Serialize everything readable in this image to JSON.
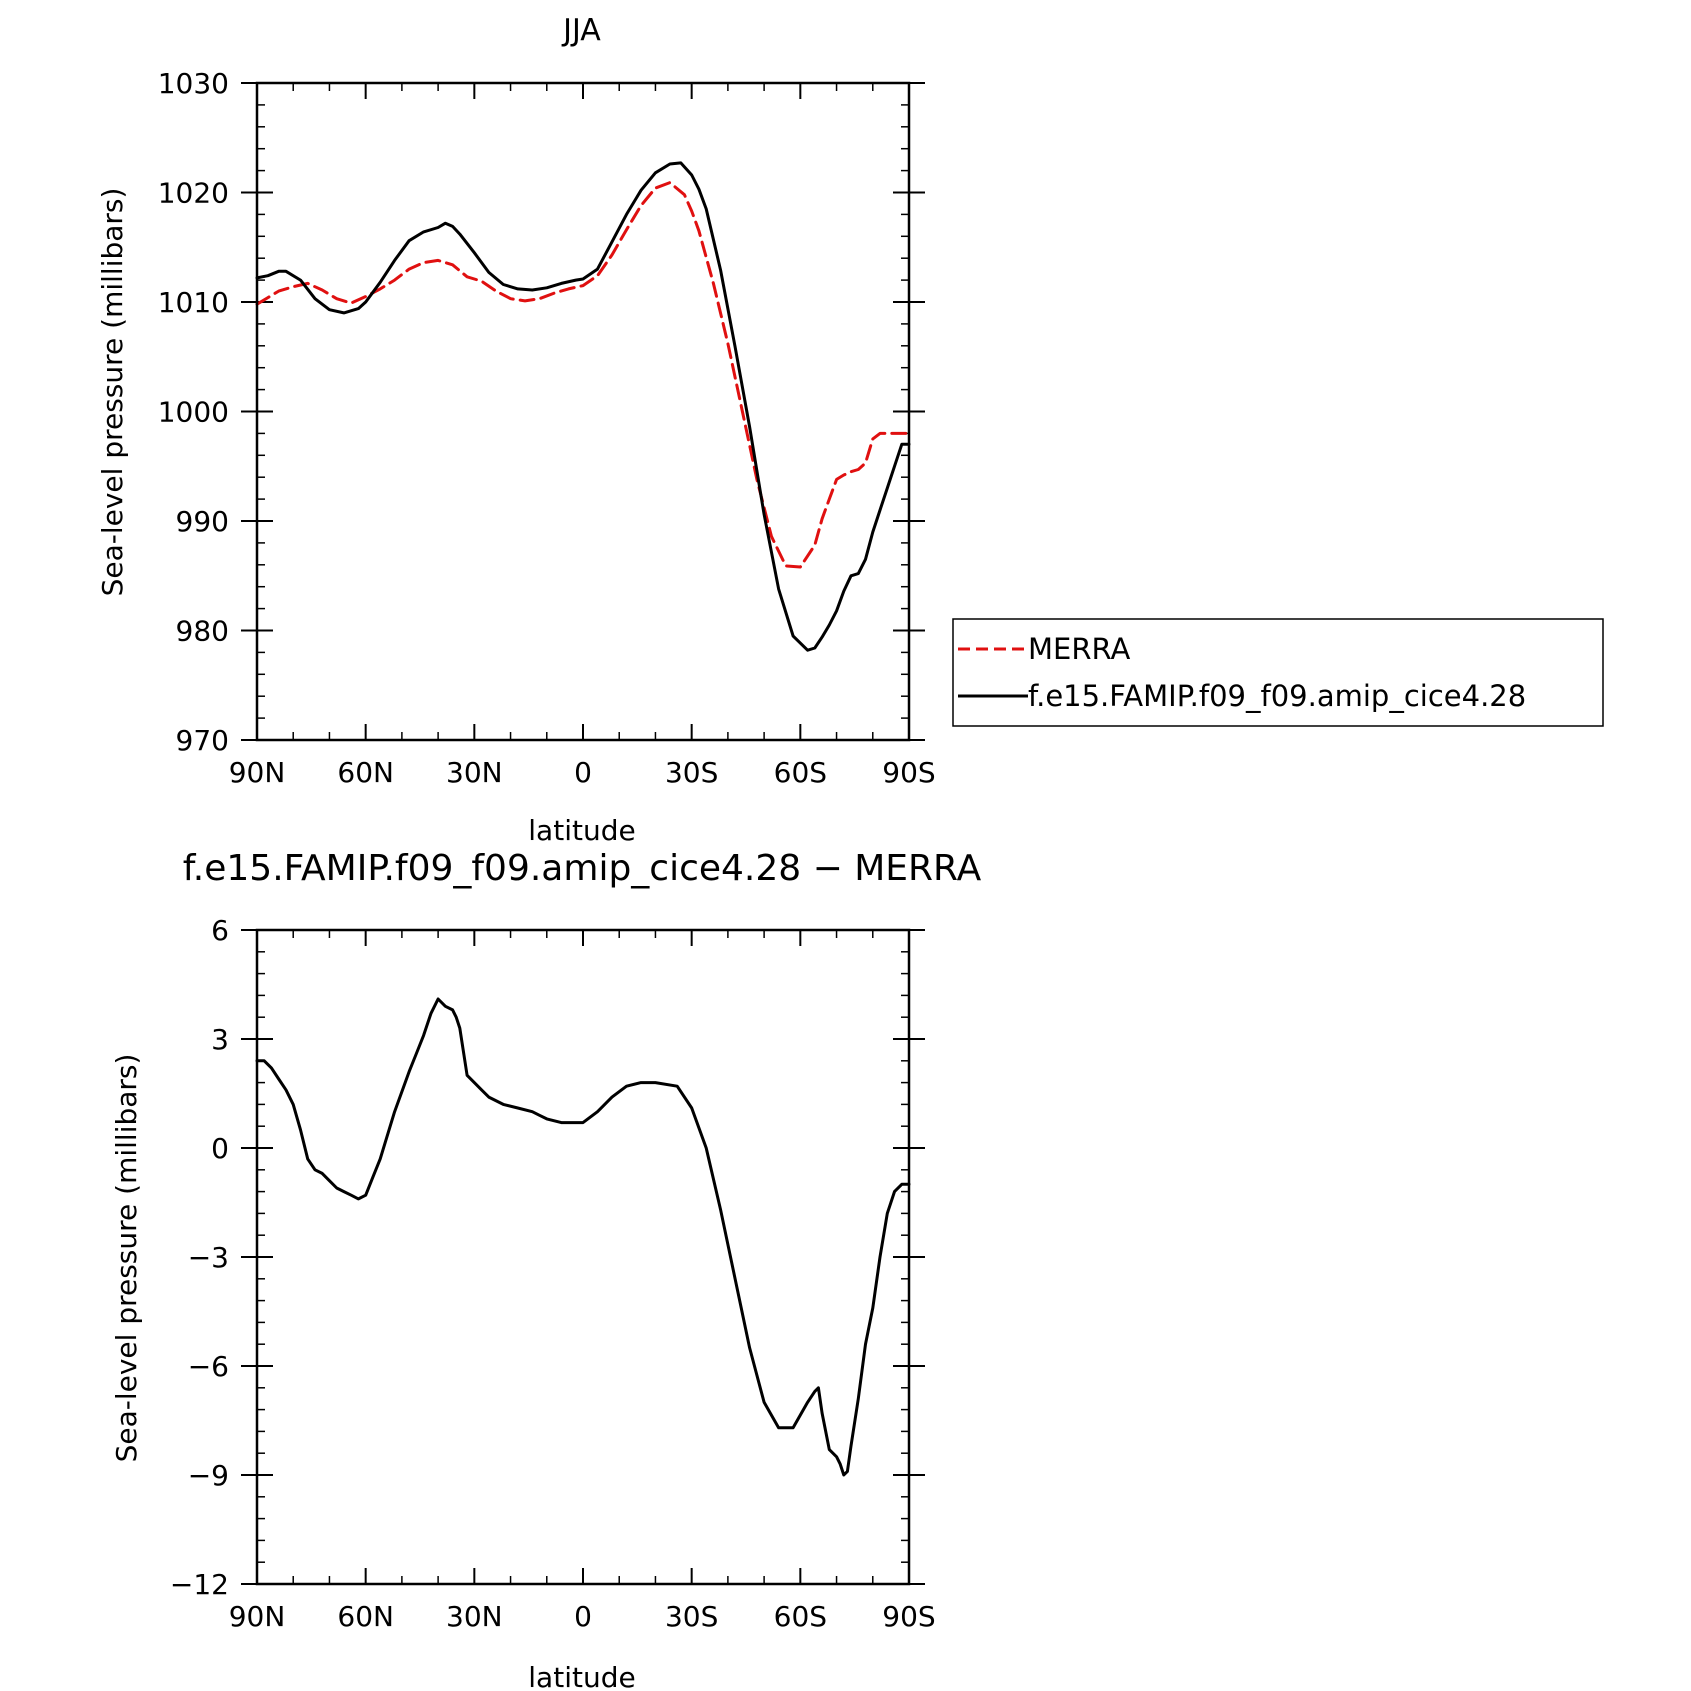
{
  "chart_data": [
    {
      "type": "line",
      "title": "JJA",
      "xlabel": "latitude",
      "ylabel": "Sea-level pressure (millibars)",
      "xlim": [
        90,
        -90
      ],
      "ylim": [
        970,
        1030
      ],
      "x_ticks": [
        {
          "value": 90,
          "label": "90N"
        },
        {
          "value": 60,
          "label": "60N"
        },
        {
          "value": 30,
          "label": "30N"
        },
        {
          "value": 0,
          "label": "0"
        },
        {
          "value": -30,
          "label": "30S"
        },
        {
          "value": -60,
          "label": "60S"
        },
        {
          "value": -90,
          "label": "90S"
        }
      ],
      "y_ticks": [
        {
          "value": 1030,
          "label": "1030"
        },
        {
          "value": 1020,
          "label": "1020"
        },
        {
          "value": 1010,
          "label": "1010"
        },
        {
          "value": 1000,
          "label": "1000"
        },
        {
          "value": 990,
          "label": "990"
        },
        {
          "value": 980,
          "label": "980"
        },
        {
          "value": 970,
          "label": "970"
        }
      ],
      "legend": {
        "placement": "right-outside",
        "entries": [
          "MERRA",
          "f.e15.FAMIP.f09_f09.amip_cice4.28"
        ]
      },
      "series": [
        {
          "name": "MERRA",
          "color": "#e01010",
          "dash": true,
          "x": [
            90,
            87,
            84,
            80,
            76,
            72,
            68,
            64,
            60,
            56,
            52,
            48,
            44,
            40,
            36,
            32,
            28,
            24,
            20,
            16,
            12,
            8,
            4,
            0,
            -4,
            -8,
            -12,
            -16,
            -20,
            -24,
            -28,
            -30,
            -32,
            -36,
            -40,
            -44,
            -48,
            -52,
            -56,
            -60,
            -64,
            -66,
            -68,
            -70,
            -72,
            -74,
            -76,
            -78,
            -80,
            -82,
            -84,
            -86,
            -88,
            -90
          ],
          "y": [
            1009.8,
            1010.4,
            1011.0,
            1011.4,
            1011.7,
            1011.1,
            1010.3,
            1009.9,
            1010.5,
            1011.2,
            1012.0,
            1013.0,
            1013.6,
            1013.8,
            1013.4,
            1012.3,
            1011.9,
            1011.0,
            1010.3,
            1010.1,
            1010.3,
            1010.8,
            1011.2,
            1011.5,
            1012.4,
            1014.3,
            1016.6,
            1018.8,
            1020.4,
            1020.9,
            1019.8,
            1018.3,
            1016.5,
            1011.7,
            1006.2,
            1000.0,
            993.8,
            988.6,
            985.9,
            985.8,
            987.8,
            990.2,
            992.0,
            993.8,
            994.2,
            994.5,
            994.7,
            995.3,
            997.5,
            998.0,
            998.0,
            998.0,
            998.0,
            998.0
          ]
        },
        {
          "name": "f.e15.FAMIP.f09_f09.amip_cice4.28",
          "color": "#000000",
          "dash": false,
          "x": [
            90,
            87,
            84,
            82,
            78,
            74,
            70,
            66,
            62,
            60,
            56,
            52,
            48,
            44,
            40,
            38,
            36,
            34,
            30,
            26,
            22,
            18,
            14,
            10,
            6,
            2,
            0,
            -4,
            -8,
            -12,
            -16,
            -20,
            -24,
            -27,
            -30,
            -32,
            -34,
            -38,
            -42,
            -46,
            -50,
            -54,
            -58,
            -62,
            -64,
            -66,
            -68,
            -70,
            -72,
            -74,
            -76,
            -78,
            -80,
            -82,
            -84,
            -86,
            -88,
            -89,
            -90
          ],
          "y": [
            1012.2,
            1012.4,
            1012.8,
            1012.8,
            1012.0,
            1010.3,
            1009.3,
            1009.0,
            1009.4,
            1010.0,
            1011.8,
            1013.8,
            1015.6,
            1016.4,
            1016.8,
            1017.2,
            1016.9,
            1016.2,
            1014.5,
            1012.7,
            1011.6,
            1011.2,
            1011.1,
            1011.3,
            1011.7,
            1012.0,
            1012.1,
            1013.0,
            1015.5,
            1018.0,
            1020.2,
            1021.8,
            1022.6,
            1022.7,
            1021.6,
            1020.3,
            1018.5,
            1012.9,
            1005.9,
            998.6,
            990.6,
            983.8,
            979.5,
            978.2,
            978.4,
            979.4,
            980.5,
            981.8,
            983.6,
            985.0,
            985.2,
            986.5,
            989.0,
            991.0,
            993.0,
            995.0,
            997.0,
            997.0,
            997.0
          ]
        }
      ]
    },
    {
      "type": "line",
      "title": "f.e15.FAMIP.f09_f09.amip_cice4.28 − MERRA",
      "xlabel": "latitude",
      "ylabel": "Sea-level pressure (millibars)",
      "xlim": [
        90,
        -90
      ],
      "ylim": [
        -12,
        6
      ],
      "x_ticks": [
        {
          "value": 90,
          "label": "90N"
        },
        {
          "value": 60,
          "label": "60N"
        },
        {
          "value": 30,
          "label": "30N"
        },
        {
          "value": 0,
          "label": "0"
        },
        {
          "value": -30,
          "label": "30S"
        },
        {
          "value": -60,
          "label": "60S"
        },
        {
          "value": -90,
          "label": "90S"
        }
      ],
      "y_ticks": [
        {
          "value": 6,
          "label": "6"
        },
        {
          "value": 3,
          "label": "3"
        },
        {
          "value": 0,
          "label": "0"
        },
        {
          "value": -3,
          "label": "−3"
        },
        {
          "value": -6,
          "label": "−6"
        },
        {
          "value": -9,
          "label": "−9"
        },
        {
          "value": -12,
          "label": "−12"
        }
      ],
      "series": [
        {
          "color": "#000000",
          "dash": false,
          "x": [
            90,
            88,
            86,
            84,
            82,
            80,
            78,
            76,
            74,
            72,
            70,
            68,
            66,
            64,
            62,
            60,
            58,
            56,
            52,
            48,
            46,
            44,
            42,
            40,
            38,
            36,
            35,
            34,
            32,
            30,
            28,
            26,
            22,
            18,
            14,
            12,
            10,
            6,
            2,
            0,
            -4,
            -8,
            -12,
            -16,
            -20,
            -26,
            -30,
            -34,
            -38,
            -42,
            -46,
            -50,
            -54,
            -58,
            -62,
            -64,
            -65,
            -66,
            -68,
            -70,
            -71,
            -72,
            -73,
            -74,
            -76,
            -78,
            -80,
            -82,
            -84,
            -86,
            -88,
            -89,
            -90
          ],
          "y": [
            2.4,
            2.4,
            2.2,
            1.9,
            1.6,
            1.2,
            0.5,
            -0.3,
            -0.6,
            -0.7,
            -0.9,
            -1.1,
            -1.2,
            -1.3,
            -1.4,
            -1.3,
            -0.8,
            -0.3,
            1.0,
            2.1,
            2.6,
            3.1,
            3.7,
            4.1,
            3.9,
            3.8,
            3.6,
            3.3,
            2.0,
            1.8,
            1.6,
            1.4,
            1.2,
            1.1,
            1.0,
            0.9,
            0.8,
            0.7,
            0.7,
            0.7,
            1.0,
            1.4,
            1.7,
            1.8,
            1.8,
            1.7,
            1.1,
            0.0,
            -1.7,
            -3.6,
            -5.5,
            -7.0,
            -7.7,
            -7.7,
            -7.0,
            -6.7,
            -6.6,
            -7.3,
            -8.3,
            -8.5,
            -8.7,
            -9.0,
            -8.9,
            -8.2,
            -6.9,
            -5.4,
            -4.4,
            -3.0,
            -1.8,
            -1.2,
            -1.0,
            -1.0,
            -1.0
          ]
        }
      ]
    }
  ]
}
